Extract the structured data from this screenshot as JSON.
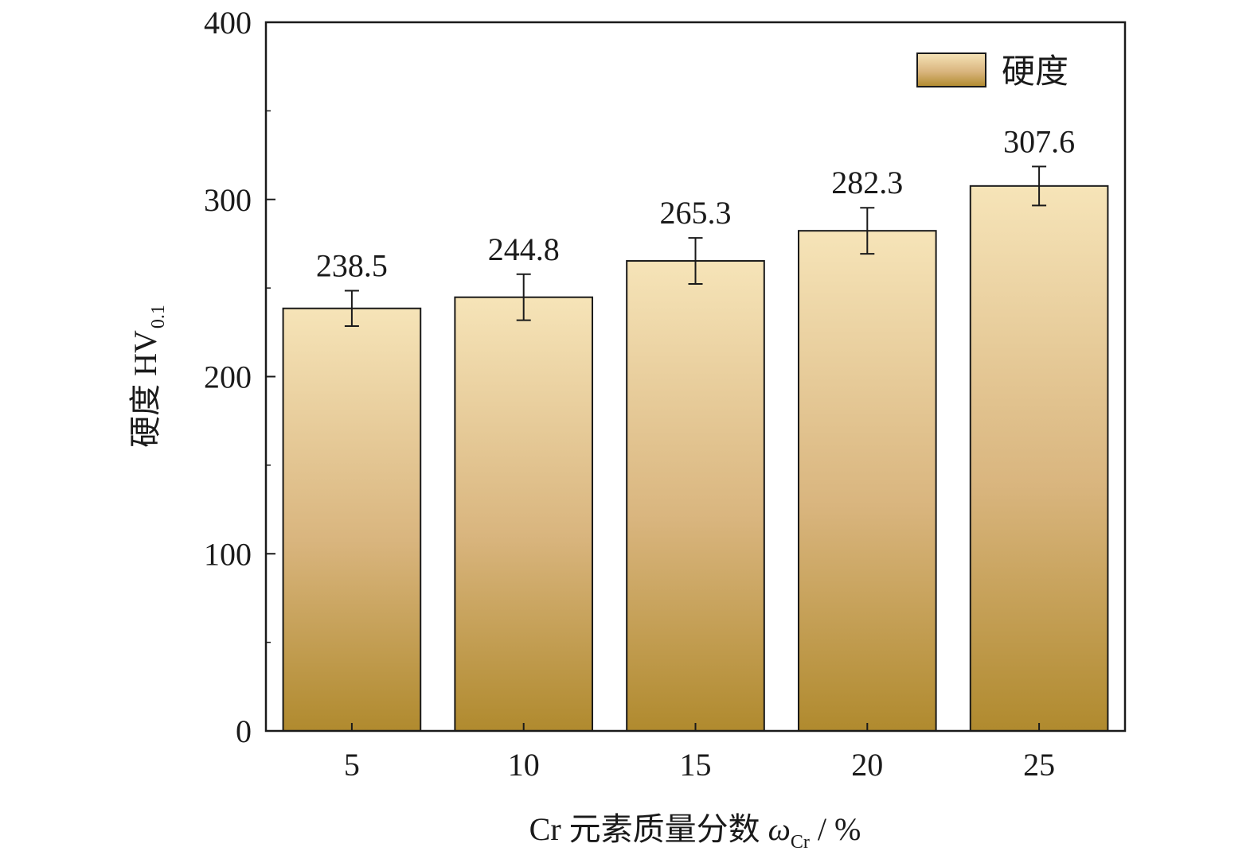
{
  "chart_data": {
    "type": "bar",
    "categories": [
      "5",
      "10",
      "15",
      "20",
      "25"
    ],
    "series": [
      {
        "name": "硬度",
        "values": [
          238.5,
          244.8,
          265.3,
          282.3,
          307.6
        ],
        "error": [
          10,
          13,
          13,
          13,
          11
        ]
      }
    ],
    "data_labels": [
      "238.5",
      "244.8",
      "265.3",
      "282.3",
      "307.6"
    ],
    "ylim": [
      0,
      400
    ],
    "yticks": [
      0,
      100,
      200,
      300,
      400
    ],
    "ylabel": {
      "main": "硬度 HV",
      "sub": "0.1"
    },
    "xlabel": {
      "prefix": "Cr 元素质量分数 ",
      "symbol": "ω",
      "sub": "Cr",
      "suffix": " / %"
    },
    "legend": {
      "label": "硬度",
      "position": "top-right"
    },
    "grid": false,
    "colors": {
      "bar_top": "#f6e4b8",
      "bar_bottom": "#b08a2e",
      "edge": "#1a1a1a"
    }
  }
}
